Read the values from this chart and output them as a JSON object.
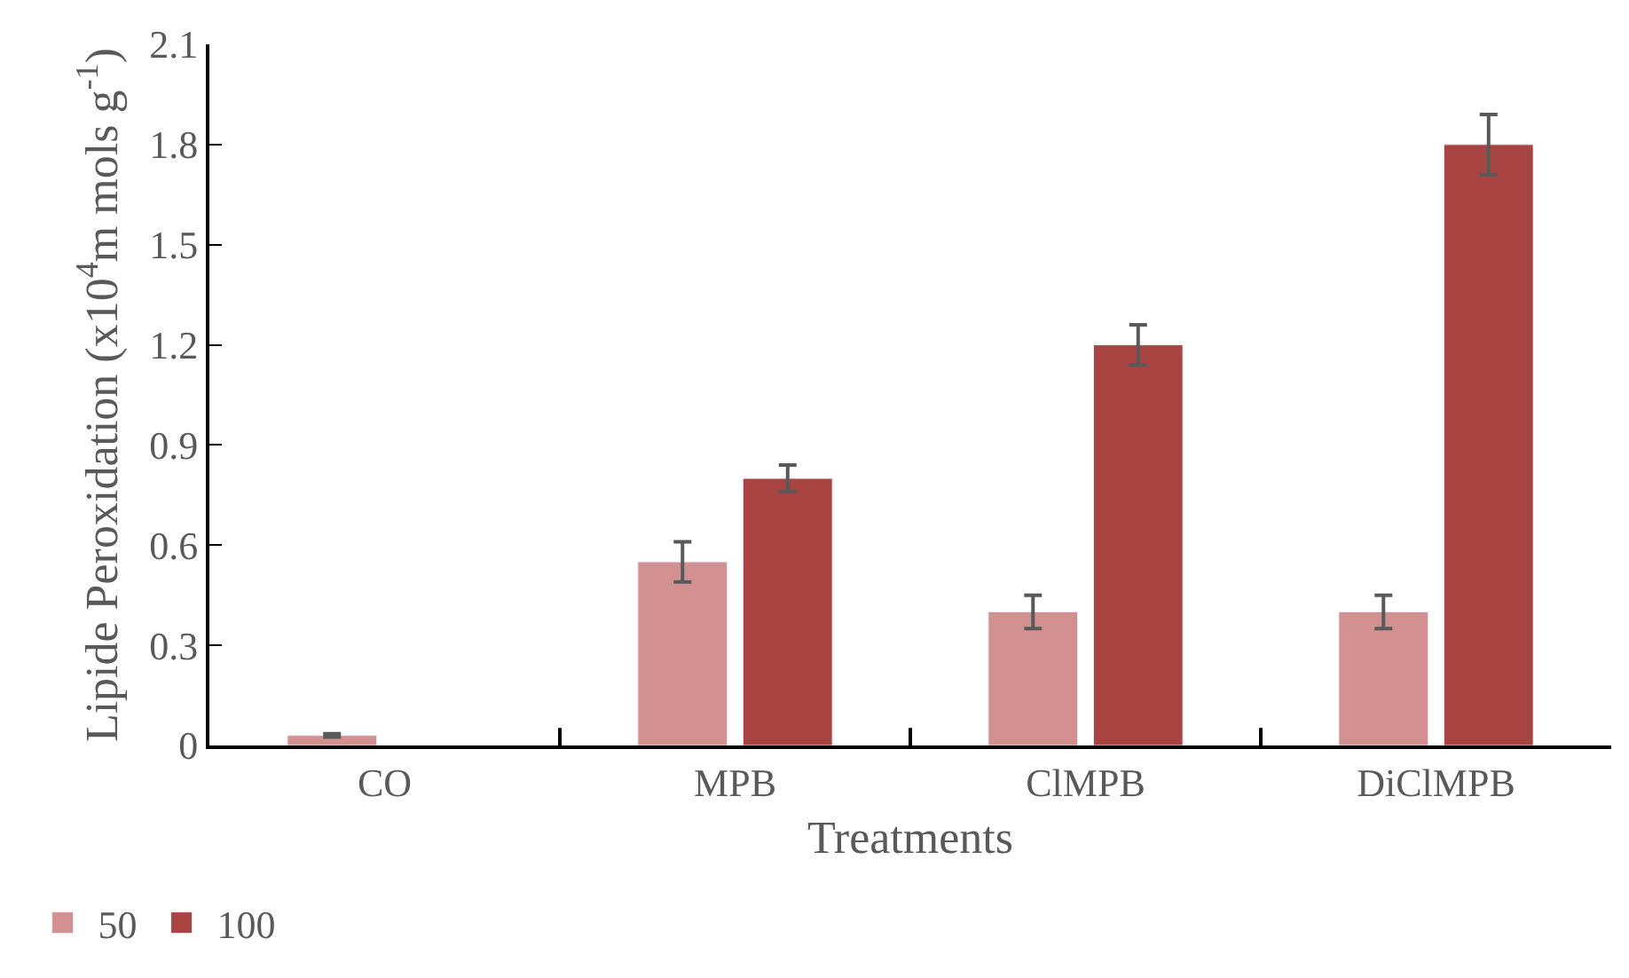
{
  "chart_data": {
    "type": "bar",
    "xlabel": "Treatments",
    "ylabel": "Lipide Peroxidation (x10$^{4}$m mols g$^{-1}$)",
    "categories": [
      "CO",
      "MPB",
      "ClMPB",
      "DiClMPB"
    ],
    "series": [
      {
        "name": "50",
        "color": "#d29090",
        "values": [
          0.03,
          0.55,
          0.4,
          0.4
        ],
        "errors": [
          0.005,
          0.06,
          0.05,
          0.05
        ]
      },
      {
        "name": "100",
        "color": "#a84442",
        "values": [
          null,
          0.8,
          1.2,
          1.8
        ],
        "errors": [
          null,
          0.04,
          0.06,
          0.09
        ]
      }
    ],
    "ylim": [
      0,
      2.1
    ],
    "yticks": [
      0,
      0.3,
      0.6,
      0.9,
      1.2,
      1.5,
      1.8,
      2.1
    ],
    "legend": "bottom left"
  }
}
